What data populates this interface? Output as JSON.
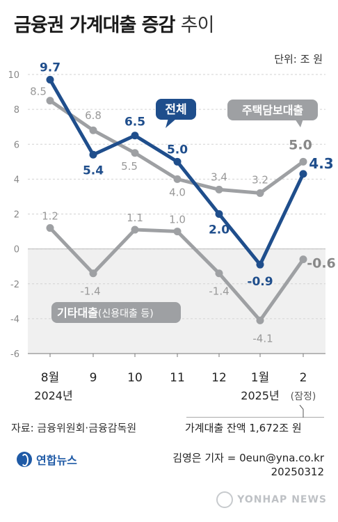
{
  "header": {
    "title_bold": "금융권 가계대출 증감",
    "title_light": "추이",
    "unit": "단위: 조 원"
  },
  "chart_data": {
    "type": "line",
    "categories": [
      "8월",
      "9",
      "10",
      "11",
      "12",
      "1월",
      "2"
    ],
    "year_labels": [
      "2024년",
      "2025년"
    ],
    "provisional_note": "(잠정)",
    "ylim": [
      -6,
      10
    ],
    "yticks": [
      10,
      8,
      6,
      4,
      2,
      0,
      -2,
      -4,
      -6
    ],
    "series": [
      {
        "name": "전체",
        "color": "#1f4e8c",
        "values": [
          9.7,
          5.4,
          6.5,
          5.0,
          2.0,
          -0.9,
          4.3
        ]
      },
      {
        "name": "주택담보대출",
        "color": "#9ea0a3",
        "values": [
          8.5,
          6.8,
          5.5,
          4.0,
          3.4,
          3.2,
          5.0
        ]
      },
      {
        "name": "기타대출",
        "name_sub": "(신용대출 등)",
        "color": "#9ea0a3",
        "values": [
          1.2,
          -1.4,
          1.1,
          1.0,
          -1.4,
          -4.1,
          -0.6
        ]
      }
    ]
  },
  "footer": {
    "source": "자료: 금융위원회·금융감독원",
    "balance": "가계대출 잔액 1,672조 원",
    "logo": "연합뉴스",
    "reporter": "김영은 기자 = 0eun@yna.co.kr",
    "date": "20250312",
    "watermark": "YONHAP NEWS"
  }
}
